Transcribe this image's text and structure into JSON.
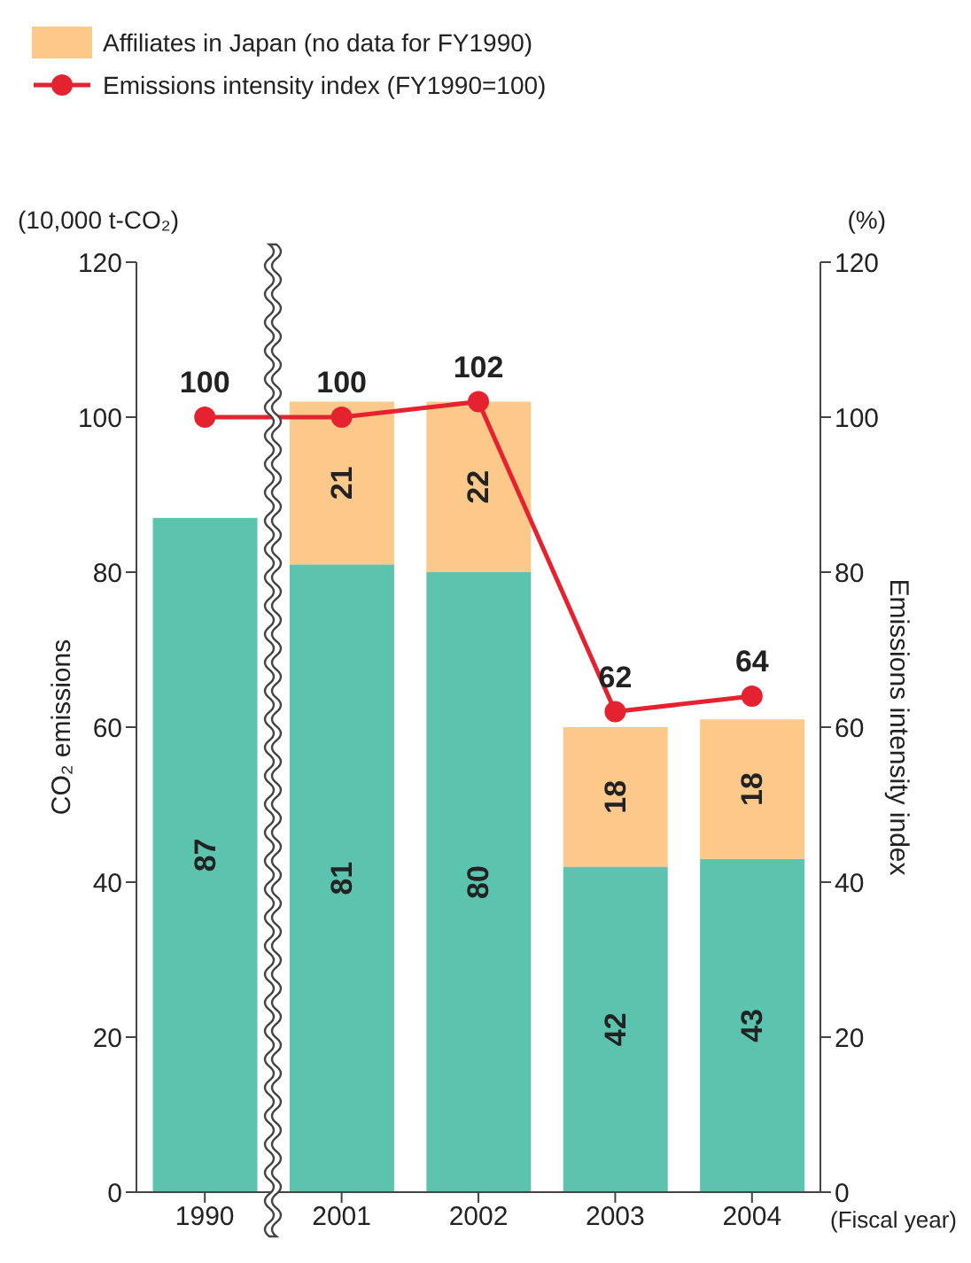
{
  "chart_data": {
    "type": "bar",
    "stacked": true,
    "categories": [
      "1990",
      "2001",
      "2002",
      "2003",
      "2004"
    ],
    "series": [
      {
        "color": "#5cc4ae",
        "values": [
          87,
          81,
          80,
          42,
          43
        ]
      },
      {
        "name": "Affiliates in Japan (no data for FY1990)",
        "color": "#fcc98a",
        "values": [
          null,
          21,
          22,
          18,
          18
        ]
      },
      {
        "name": "Emissions intensity index (FY1990=100)",
        "type": "line",
        "axis": "y2",
        "color": "#e52330",
        "marker": "circle",
        "values": [
          100,
          100,
          102,
          62,
          64
        ]
      }
    ],
    "ylabel": "CO₂ emissions",
    "y2label": "Emissions intensity index",
    "xlabel": "(Fiscal year)",
    "annotations": [
      "(10,000 t-CO₂)",
      "(%)"
    ],
    "ylim": [
      0,
      120
    ],
    "yticks": [
      0,
      20,
      40,
      60,
      80,
      100,
      120
    ],
    "y2lim": [
      0,
      120
    ],
    "y2ticks": [
      0,
      20,
      40,
      60,
      80,
      100,
      120
    ],
    "data_labels": true,
    "legend": "top left"
  }
}
